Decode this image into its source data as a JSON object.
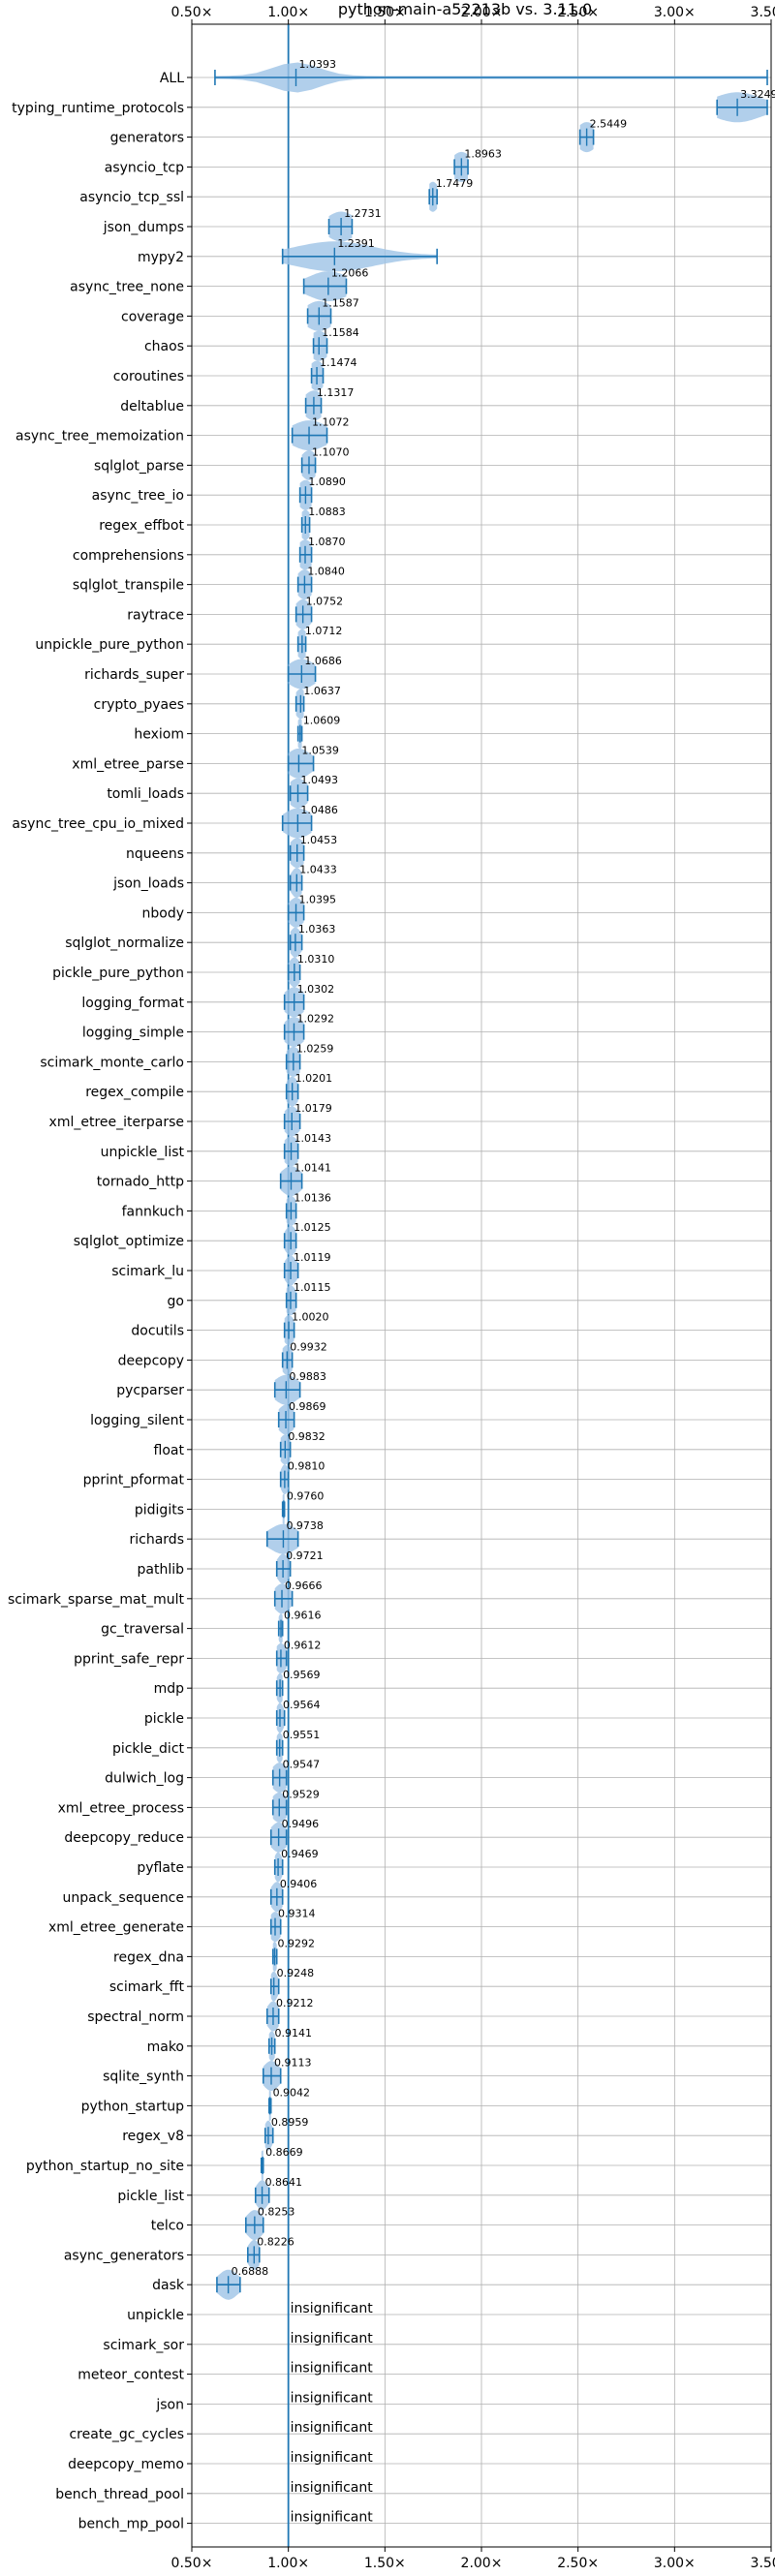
{
  "chart_data": {
    "type": "violin",
    "title": "python-main-a52213b vs. 3.11.0",
    "xlabel": "",
    "ylabel": "",
    "xlim": [
      0.5,
      3.5
    ],
    "x_ticks": [
      0.5,
      1.0,
      1.5,
      2.0,
      2.5,
      3.0,
      3.5
    ],
    "x_tick_labels": [
      "0.50×",
      "1.00×",
      "1.50×",
      "2.00×",
      "2.50×",
      "3.00×",
      "3.50×"
    ],
    "reference_line": 1.0,
    "grid": true,
    "insignificant_label": "insignificant",
    "benchmarks": [
      {
        "name": "ALL",
        "value": 1.0393,
        "min": 0.62,
        "max": 3.48,
        "spread": 0.12
      },
      {
        "name": "typing_runtime_protocols",
        "value": 3.3249,
        "min": 3.22,
        "max": 3.48,
        "spread": 0.12
      },
      {
        "name": "generators",
        "value": 2.5449,
        "min": 2.51,
        "max": 2.58,
        "spread": 0.05
      },
      {
        "name": "asyncio_tcp",
        "value": 1.8963,
        "min": 1.86,
        "max": 1.93,
        "spread": 0.05
      },
      {
        "name": "asyncio_tcp_ssl",
        "value": 1.7479,
        "min": 1.73,
        "max": 1.77,
        "spread": 0.03
      },
      {
        "name": "json_dumps",
        "value": 1.2731,
        "min": 1.21,
        "max": 1.33,
        "spread": 0.07
      },
      {
        "name": "mypy2",
        "value": 1.2391,
        "min": 0.97,
        "max": 1.77,
        "spread": 0.2
      },
      {
        "name": "async_tree_none",
        "value": 1.2066,
        "min": 1.08,
        "max": 1.3,
        "spread": 0.1
      },
      {
        "name": "coverage",
        "value": 1.1587,
        "min": 1.1,
        "max": 1.22,
        "spread": 0.07
      },
      {
        "name": "chaos",
        "value": 1.1584,
        "min": 1.13,
        "max": 1.2,
        "spread": 0.05
      },
      {
        "name": "coroutines",
        "value": 1.1474,
        "min": 1.12,
        "max": 1.18,
        "spread": 0.04
      },
      {
        "name": "deltablue",
        "value": 1.1317,
        "min": 1.09,
        "max": 1.17,
        "spread": 0.05
      },
      {
        "name": "async_tree_memoization",
        "value": 1.1072,
        "min": 1.02,
        "max": 1.2,
        "spread": 0.09
      },
      {
        "name": "sqlglot_parse",
        "value": 1.107,
        "min": 1.07,
        "max": 1.14,
        "spread": 0.04
      },
      {
        "name": "async_tree_io",
        "value": 1.089,
        "min": 1.06,
        "max": 1.12,
        "spread": 0.04
      },
      {
        "name": "regex_effbot",
        "value": 1.0883,
        "min": 1.07,
        "max": 1.11,
        "spread": 0.03
      },
      {
        "name": "comprehensions",
        "value": 1.087,
        "min": 1.06,
        "max": 1.12,
        "spread": 0.04
      },
      {
        "name": "sqlglot_transpile",
        "value": 1.084,
        "min": 1.05,
        "max": 1.12,
        "spread": 0.04
      },
      {
        "name": "raytrace",
        "value": 1.0752,
        "min": 1.04,
        "max": 1.12,
        "spread": 0.04
      },
      {
        "name": "unpickle_pure_python",
        "value": 1.0712,
        "min": 1.05,
        "max": 1.09,
        "spread": 0.03
      },
      {
        "name": "richards_super",
        "value": 1.0686,
        "min": 1.0,
        "max": 1.14,
        "spread": 0.07
      },
      {
        "name": "crypto_pyaes",
        "value": 1.0637,
        "min": 1.04,
        "max": 1.08,
        "spread": 0.03
      },
      {
        "name": "hexiom",
        "value": 1.0609,
        "min": 1.05,
        "max": 1.07,
        "spread": 0.02
      },
      {
        "name": "xml_etree_parse",
        "value": 1.0539,
        "min": 1.0,
        "max": 1.13,
        "spread": 0.06
      },
      {
        "name": "tomli_loads",
        "value": 1.0493,
        "min": 1.01,
        "max": 1.1,
        "spread": 0.05
      },
      {
        "name": "async_tree_cpu_io_mixed",
        "value": 1.0486,
        "min": 0.97,
        "max": 1.12,
        "spread": 0.07
      },
      {
        "name": "nqueens",
        "value": 1.0453,
        "min": 1.01,
        "max": 1.08,
        "spread": 0.04
      },
      {
        "name": "json_loads",
        "value": 1.0433,
        "min": 1.01,
        "max": 1.07,
        "spread": 0.03
      },
      {
        "name": "nbody",
        "value": 1.0395,
        "min": 1.0,
        "max": 1.08,
        "spread": 0.04
      },
      {
        "name": "sqlglot_normalize",
        "value": 1.0363,
        "min": 1.01,
        "max": 1.07,
        "spread": 0.03
      },
      {
        "name": "pickle_pure_python",
        "value": 1.031,
        "min": 1.0,
        "max": 1.06,
        "spread": 0.03
      },
      {
        "name": "logging_format",
        "value": 1.0302,
        "min": 0.98,
        "max": 1.08,
        "spread": 0.05
      },
      {
        "name": "logging_simple",
        "value": 1.0292,
        "min": 0.98,
        "max": 1.08,
        "spread": 0.05
      },
      {
        "name": "scimark_monte_carlo",
        "value": 1.0259,
        "min": 0.99,
        "max": 1.06,
        "spread": 0.04
      },
      {
        "name": "regex_compile",
        "value": 1.0201,
        "min": 0.99,
        "max": 1.05,
        "spread": 0.03
      },
      {
        "name": "xml_etree_iterparse",
        "value": 1.0179,
        "min": 0.98,
        "max": 1.06,
        "spread": 0.04
      },
      {
        "name": "unpickle_list",
        "value": 1.0143,
        "min": 0.98,
        "max": 1.05,
        "spread": 0.04
      },
      {
        "name": "tornado_http",
        "value": 1.0141,
        "min": 0.96,
        "max": 1.07,
        "spread": 0.05
      },
      {
        "name": "fannkuch",
        "value": 1.0136,
        "min": 0.99,
        "max": 1.04,
        "spread": 0.03
      },
      {
        "name": "sqlglot_optimize",
        "value": 1.0125,
        "min": 0.98,
        "max": 1.04,
        "spread": 0.03
      },
      {
        "name": "scimark_lu",
        "value": 1.0119,
        "min": 0.98,
        "max": 1.05,
        "spread": 0.03
      },
      {
        "name": "go",
        "value": 1.0115,
        "min": 0.99,
        "max": 1.04,
        "spread": 0.03
      },
      {
        "name": "docutils",
        "value": 1.002,
        "min": 0.98,
        "max": 1.03,
        "spread": 0.03
      },
      {
        "name": "deepcopy",
        "value": 0.9932,
        "min": 0.97,
        "max": 1.02,
        "spread": 0.03
      },
      {
        "name": "pycparser",
        "value": 0.9883,
        "min": 0.93,
        "max": 1.06,
        "spread": 0.06
      },
      {
        "name": "logging_silent",
        "value": 0.9869,
        "min": 0.95,
        "max": 1.03,
        "spread": 0.04
      },
      {
        "name": "float",
        "value": 0.9832,
        "min": 0.96,
        "max": 1.01,
        "spread": 0.03
      },
      {
        "name": "pprint_pformat",
        "value": 0.981,
        "min": 0.96,
        "max": 1.0,
        "spread": 0.02
      },
      {
        "name": "pidigits",
        "value": 0.976,
        "min": 0.97,
        "max": 0.98,
        "spread": 0.01
      },
      {
        "name": "richards",
        "value": 0.9738,
        "min": 0.89,
        "max": 1.05,
        "spread": 0.07
      },
      {
        "name": "pathlib",
        "value": 0.9721,
        "min": 0.94,
        "max": 1.01,
        "spread": 0.03
      },
      {
        "name": "scimark_sparse_mat_mult",
        "value": 0.9666,
        "min": 0.93,
        "max": 1.02,
        "spread": 0.04
      },
      {
        "name": "gc_traversal",
        "value": 0.9616,
        "min": 0.95,
        "max": 0.97,
        "spread": 0.01
      },
      {
        "name": "pprint_safe_repr",
        "value": 0.9612,
        "min": 0.94,
        "max": 0.99,
        "spread": 0.03
      },
      {
        "name": "mdp",
        "value": 0.9569,
        "min": 0.94,
        "max": 0.97,
        "spread": 0.02
      },
      {
        "name": "pickle",
        "value": 0.9564,
        "min": 0.94,
        "max": 0.98,
        "spread": 0.02
      },
      {
        "name": "pickle_dict",
        "value": 0.9551,
        "min": 0.94,
        "max": 0.97,
        "spread": 0.02
      },
      {
        "name": "dulwich_log",
        "value": 0.9547,
        "min": 0.92,
        "max": 0.99,
        "spread": 0.04
      },
      {
        "name": "xml_etree_process",
        "value": 0.9529,
        "min": 0.92,
        "max": 0.99,
        "spread": 0.04
      },
      {
        "name": "deepcopy_reduce",
        "value": 0.9496,
        "min": 0.91,
        "max": 0.99,
        "spread": 0.04
      },
      {
        "name": "pyflate",
        "value": 0.9469,
        "min": 0.93,
        "max": 0.97,
        "spread": 0.02
      },
      {
        "name": "unpack_sequence",
        "value": 0.9406,
        "min": 0.91,
        "max": 0.97,
        "spread": 0.03
      },
      {
        "name": "xml_etree_generate",
        "value": 0.9314,
        "min": 0.91,
        "max": 0.96,
        "spread": 0.03
      },
      {
        "name": "regex_dna",
        "value": 0.9292,
        "min": 0.92,
        "max": 0.94,
        "spread": 0.01
      },
      {
        "name": "scimark_fft",
        "value": 0.9248,
        "min": 0.91,
        "max": 0.95,
        "spread": 0.02
      },
      {
        "name": "spectral_norm",
        "value": 0.9212,
        "min": 0.89,
        "max": 0.95,
        "spread": 0.03
      },
      {
        "name": "mako",
        "value": 0.9141,
        "min": 0.9,
        "max": 0.93,
        "spread": 0.02
      },
      {
        "name": "sqlite_synth",
        "value": 0.9113,
        "min": 0.87,
        "max": 0.96,
        "spread": 0.04
      },
      {
        "name": "python_startup",
        "value": 0.9042,
        "min": 0.9,
        "max": 0.91,
        "spread": 0.01
      },
      {
        "name": "regex_v8",
        "value": 0.8959,
        "min": 0.88,
        "max": 0.92,
        "spread": 0.02
      },
      {
        "name": "python_startup_no_site",
        "value": 0.8669,
        "min": 0.86,
        "max": 0.87,
        "spread": 0.01
      },
      {
        "name": "pickle_list",
        "value": 0.8641,
        "min": 0.83,
        "max": 0.9,
        "spread": 0.03
      },
      {
        "name": "telco",
        "value": 0.8253,
        "min": 0.78,
        "max": 0.87,
        "spread": 0.04
      },
      {
        "name": "async_generators",
        "value": 0.8226,
        "min": 0.79,
        "max": 0.85,
        "spread": 0.03
      },
      {
        "name": "dask",
        "value": 0.6888,
        "min": 0.63,
        "max": 0.75,
        "spread": 0.05
      },
      {
        "name": "unpickle",
        "value": null,
        "insignificant": true
      },
      {
        "name": "scimark_sor",
        "value": null,
        "insignificant": true
      },
      {
        "name": "meteor_contest",
        "value": null,
        "insignificant": true
      },
      {
        "name": "json",
        "value": null,
        "insignificant": true
      },
      {
        "name": "create_gc_cycles",
        "value": null,
        "insignificant": true
      },
      {
        "name": "deepcopy_memo",
        "value": null,
        "insignificant": true
      },
      {
        "name": "bench_thread_pool",
        "value": null,
        "insignificant": true
      },
      {
        "name": "bench_mp_pool",
        "value": null,
        "insignificant": true
      }
    ],
    "colors": {
      "violin_fill": "#9dc3e6",
      "violin_line": "#1f77b4",
      "reference_line": "#1f77b4",
      "grid": "#b0b0b0",
      "axis": "#000000"
    }
  }
}
